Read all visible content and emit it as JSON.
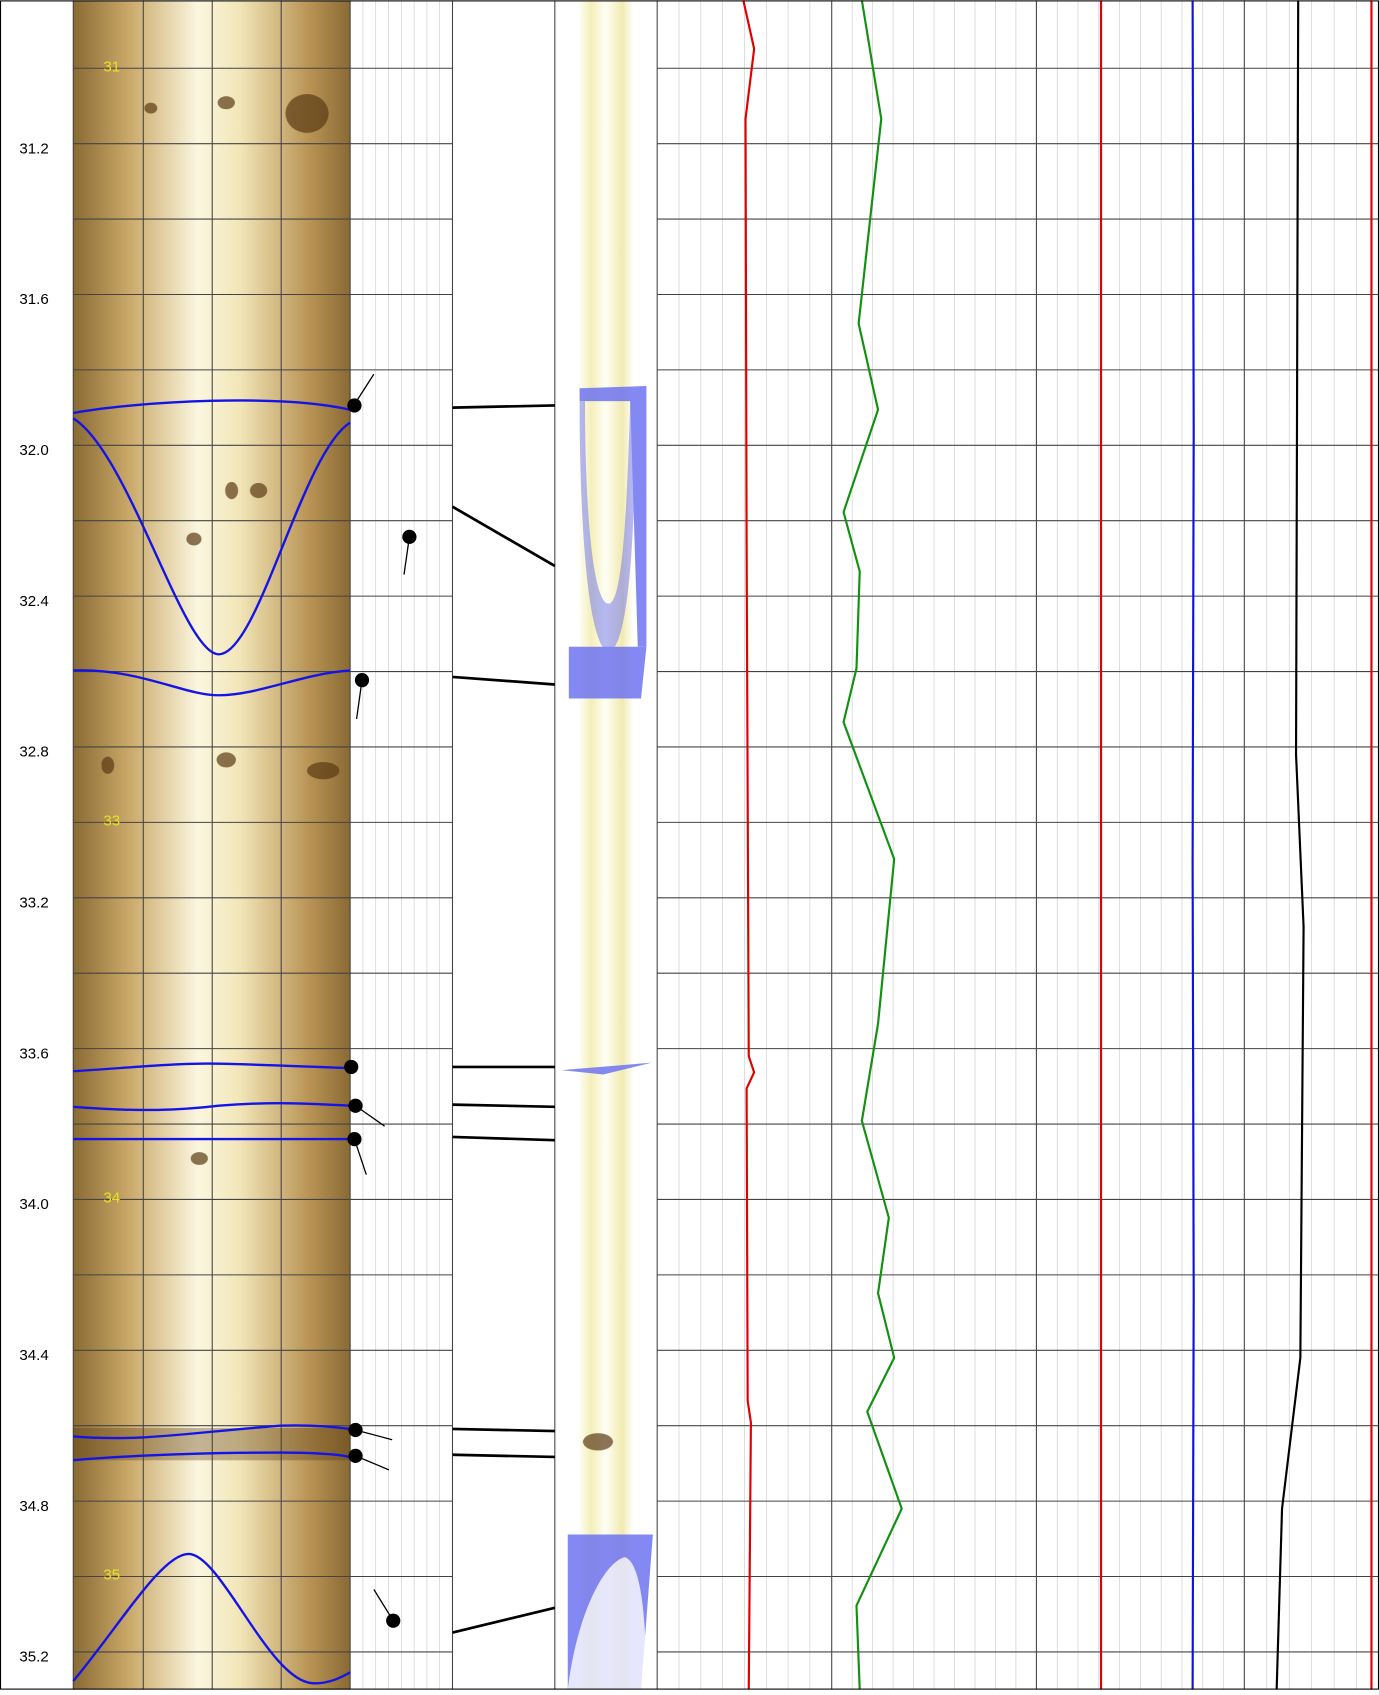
{
  "depth_track": {
    "labels": [
      "31.2",
      "31.6",
      "32.0",
      "32.4",
      "32.8",
      "33.2",
      "33.6",
      "34.0",
      "34.4",
      "34.8",
      "35.2"
    ]
  },
  "image_marks": [
    "31",
    "33",
    "34",
    "35"
  ]
}
